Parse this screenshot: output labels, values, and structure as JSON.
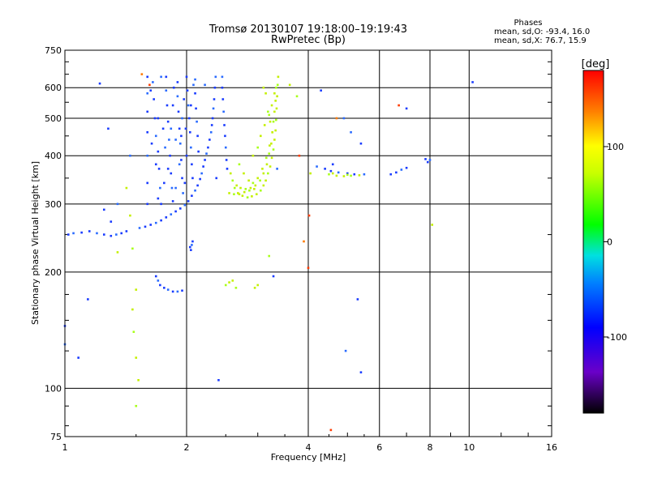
{
  "chart_data": {
    "type": "scatter",
    "title": "Tromsø 20130107 19:18:00–19:19:43",
    "subtitle": "RwPretec (Bp)",
    "xlabel": "Frequency [MHz]",
    "ylabel": "Stationary phase Virtual Height [km]",
    "x_scale": "log",
    "y_scale": "log",
    "xlim": [
      1,
      16
    ],
    "ylim": [
      75,
      750
    ],
    "x_ticks": [
      1,
      2,
      4,
      6,
      8,
      10,
      16
    ],
    "x_tick_labels": [
      "1",
      "2",
      "4",
      "6",
      "8",
      "10",
      "16"
    ],
    "y_ticks": [
      75,
      100,
      200,
      300,
      400,
      500,
      600,
      750
    ],
    "y_tick_labels": [
      "75",
      "100",
      "200",
      "300",
      "400",
      "500",
      "600",
      "750"
    ],
    "grid": true,
    "stats": {
      "heading": "Phases",
      "o_line": "mean, sd,O: -93.4, 16.0",
      "x_line": "mean, sd,X:  76.7, 15.9"
    },
    "colorbar": {
      "label": "[deg]",
      "range": [
        -180,
        180
      ],
      "ticks": [
        100,
        0,
        -100
      ],
      "tick_labels": [
        "100",
        "0",
        "-100"
      ]
    },
    "series": [
      {
        "points": [
          [
            1.53,
            260
          ],
          [
            1.58,
            262
          ],
          [
            1.63,
            265
          ],
          [
            1.68,
            268
          ],
          [
            1.73,
            272
          ],
          [
            1.78,
            277
          ],
          [
            1.83,
            282
          ],
          [
            1.88,
            287
          ],
          [
            1.93,
            292
          ],
          [
            1.98,
            298
          ],
          [
            2.02,
            305
          ],
          [
            2.06,
            315
          ],
          [
            2.1,
            325
          ],
          [
            2.13,
            335
          ],
          [
            2.16,
            348
          ],
          [
            2.18,
            360
          ],
          [
            2.2,
            375
          ],
          [
            2.22,
            390
          ],
          [
            2.24,
            405
          ],
          [
            2.26,
            420
          ],
          [
            2.28,
            440
          ],
          [
            2.3,
            460
          ],
          [
            2.31,
            480
          ],
          [
            2.32,
            500
          ],
          [
            2.33,
            530
          ],
          [
            2.34,
            560
          ],
          [
            2.35,
            600
          ],
          [
            2.36,
            640
          ],
          [
            1.42,
            255
          ],
          [
            1.38,
            252
          ],
          [
            1.34,
            250
          ],
          [
            1.3,
            248
          ],
          [
            1.25,
            250
          ],
          [
            1.2,
            252
          ],
          [
            1.15,
            255
          ],
          [
            1.1,
            253
          ],
          [
            1.05,
            252
          ],
          [
            1.02,
            250
          ],
          [
            1.6,
            640
          ],
          [
            1.6,
            580
          ],
          [
            1.6,
            520
          ],
          [
            1.6,
            460
          ],
          [
            1.6,
            400
          ],
          [
            1.6,
            340
          ],
          [
            1.6,
            300
          ],
          [
            1.65,
            620
          ],
          [
            1.66,
            560
          ],
          [
            1.67,
            500
          ],
          [
            1.68,
            450
          ],
          [
            1.7,
            410
          ],
          [
            1.71,
            370
          ],
          [
            1.72,
            330
          ],
          [
            1.73,
            300
          ],
          [
            1.78,
            640
          ],
          [
            1.78,
            590
          ],
          [
            1.79,
            540
          ],
          [
            1.8,
            490
          ],
          [
            1.81,
            440
          ],
          [
            1.82,
            400
          ],
          [
            1.83,
            360
          ],
          [
            1.84,
            330
          ],
          [
            1.85,
            305
          ],
          [
            1.9,
            620
          ],
          [
            1.9,
            570
          ],
          [
            1.91,
            520
          ],
          [
            1.92,
            470
          ],
          [
            1.93,
            430
          ],
          [
            1.94,
            390
          ],
          [
            1.95,
            350
          ],
          [
            1.96,
            320
          ],
          [
            2.0,
            640
          ],
          [
            2.01,
            590
          ],
          [
            2.02,
            540
          ],
          [
            2.03,
            500
          ],
          [
            2.04,
            460
          ],
          [
            2.05,
            420
          ],
          [
            2.06,
            380
          ],
          [
            2.07,
            350
          ],
          [
            2.1,
            630
          ],
          [
            2.1,
            580
          ],
          [
            2.11,
            530
          ],
          [
            2.12,
            490
          ],
          [
            2.13,
            450
          ],
          [
            2.14,
            410
          ],
          [
            1.73,
            640
          ],
          [
            1.86,
            600
          ],
          [
            1.97,
            560
          ],
          [
            2.08,
            610
          ],
          [
            1.63,
            590
          ],
          [
            1.75,
            470
          ],
          [
            1.88,
            440
          ],
          [
            1.99,
            470
          ],
          [
            1.85,
            540
          ],
          [
            1.95,
            500
          ],
          [
            2.05,
            540
          ],
          [
            1.7,
            500
          ],
          [
            1.83,
            470
          ],
          [
            1.94,
            450
          ],
          [
            1.64,
            430
          ],
          [
            1.77,
            420
          ],
          [
            1.68,
            380
          ],
          [
            1.8,
            370
          ],
          [
            1.92,
            380
          ],
          [
            2.0,
            400
          ],
          [
            1.76,
            340
          ],
          [
            1.88,
            330
          ],
          [
            1.98,
            340
          ],
          [
            1.7,
            310
          ],
          [
            1.8,
            180
          ],
          [
            1.76,
            182
          ],
          [
            1.72,
            185
          ],
          [
            1.7,
            190
          ],
          [
            1.68,
            195
          ],
          [
            1.85,
            178
          ],
          [
            1.9,
            178
          ],
          [
            1.95,
            179
          ],
          [
            2.05,
            228
          ],
          [
            2.06,
            235
          ],
          [
            2.07,
            240
          ],
          [
            2.04,
            232
          ],
          [
            2.45,
            640
          ],
          [
            2.45,
            600
          ],
          [
            2.46,
            560
          ],
          [
            2.47,
            520
          ],
          [
            2.48,
            480
          ],
          [
            2.49,
            450
          ],
          [
            2.5,
            420
          ],
          [
            2.51,
            390
          ],
          [
            2.52,
            370
          ],
          [
            4.2,
            375
          ],
          [
            4.4,
            370
          ],
          [
            4.55,
            365
          ],
          [
            4.75,
            362
          ],
          [
            5.0,
            360
          ],
          [
            5.2,
            358
          ],
          [
            5.5,
            358
          ],
          [
            6.4,
            358
          ],
          [
            6.6,
            362
          ],
          [
            6.8,
            368
          ],
          [
            7.0,
            372
          ],
          [
            7.9,
            385
          ],
          [
            8.0,
            390
          ],
          [
            7.8,
            392
          ],
          [
            1.0,
            145
          ],
          [
            1.0,
            130
          ],
          [
            1.22,
            615
          ],
          [
            1.28,
            470
          ],
          [
            1.35,
            300
          ],
          [
            1.25,
            290
          ],
          [
            1.3,
            270
          ],
          [
            1.45,
            400
          ],
          [
            1.08,
            120
          ],
          [
            1.14,
            170
          ],
          [
            2.22,
            610
          ],
          [
            2.37,
            350
          ],
          [
            2.4,
            105
          ],
          [
            3.35,
            370
          ],
          [
            3.28,
            195
          ],
          [
            4.3,
            590
          ],
          [
            4.9,
            500
          ],
          [
            5.3,
            170
          ],
          [
            5.4,
            110
          ],
          [
            4.95,
            125
          ],
          [
            7.0,
            530
          ],
          [
            10.2,
            620
          ],
          [
            5.1,
            460
          ],
          [
            5.4,
            430
          ],
          [
            4.6,
            380
          ]
        ]
      },
      {
        "points": [
          [
            2.63,
            330
          ],
          [
            2.68,
            320
          ],
          [
            2.75,
            315
          ],
          [
            2.83,
            312
          ],
          [
            2.9,
            314
          ],
          [
            2.98,
            318
          ],
          [
            3.05,
            325
          ],
          [
            3.1,
            335
          ],
          [
            3.14,
            345
          ],
          [
            3.18,
            360
          ],
          [
            3.22,
            375
          ],
          [
            3.25,
            395
          ],
          [
            3.28,
            415
          ],
          [
            3.3,
            440
          ],
          [
            3.32,
            465
          ],
          [
            3.33,
            495
          ],
          [
            3.34,
            530
          ],
          [
            3.35,
            570
          ],
          [
            3.36,
            610
          ],
          [
            3.37,
            640
          ],
          [
            2.57,
            360
          ],
          [
            2.6,
            345
          ],
          [
            2.66,
            335
          ],
          [
            2.72,
            330
          ],
          [
            2.8,
            328
          ],
          [
            2.88,
            330
          ],
          [
            2.96,
            335
          ],
          [
            3.04,
            345
          ],
          [
            3.1,
            360
          ],
          [
            3.16,
            380
          ],
          [
            3.2,
            405
          ],
          [
            3.24,
            430
          ],
          [
            3.26,
            460
          ],
          [
            3.28,
            490
          ],
          [
            3.3,
            520
          ],
          [
            3.32,
            555
          ],
          [
            2.7,
            380
          ],
          [
            2.77,
            360
          ],
          [
            2.85,
            345
          ],
          [
            2.92,
            340
          ],
          [
            3.0,
            350
          ],
          [
            3.08,
            370
          ],
          [
            3.15,
            395
          ],
          [
            3.21,
            425
          ],
          [
            2.55,
            320
          ],
          [
            2.62,
            318
          ],
          [
            2.7,
            318
          ],
          [
            2.78,
            322
          ],
          [
            2.86,
            325
          ],
          [
            2.94,
            328
          ],
          [
            2.92,
            400
          ],
          [
            3.0,
            420
          ],
          [
            3.05,
            450
          ],
          [
            3.12,
            480
          ],
          [
            3.2,
            510
          ],
          [
            3.25,
            540
          ],
          [
            3.3,
            580
          ],
          [
            3.33,
            600
          ],
          [
            3.1,
            600
          ],
          [
            3.14,
            580
          ],
          [
            3.18,
            520
          ],
          [
            3.22,
            490
          ],
          [
            3.26,
            460
          ],
          [
            2.5,
            185
          ],
          [
            2.55,
            188
          ],
          [
            2.6,
            190
          ],
          [
            2.65,
            182
          ],
          [
            2.95,
            182
          ],
          [
            3.0,
            185
          ],
          [
            4.5,
            358
          ],
          [
            4.7,
            355
          ],
          [
            4.9,
            354
          ],
          [
            5.1,
            355
          ],
          [
            5.35,
            356
          ],
          [
            4.6,
            360
          ],
          [
            5.0,
            357
          ],
          [
            1.42,
            330
          ],
          [
            1.45,
            280
          ],
          [
            1.47,
            230
          ],
          [
            1.5,
            180
          ],
          [
            1.47,
            160
          ],
          [
            1.48,
            140
          ],
          [
            1.5,
            120
          ],
          [
            1.52,
            105
          ],
          [
            1.5,
            90
          ],
          [
            4.05,
            360
          ],
          [
            3.6,
            610
          ],
          [
            3.75,
            570
          ],
          [
            8.1,
            265
          ],
          [
            1.35,
            225
          ],
          [
            3.2,
            220
          ]
        ]
      },
      {
        "points": [
          [
            1.55,
            650
          ],
          [
            3.8,
            400
          ],
          [
            4.02,
            280
          ],
          [
            3.9,
            240
          ],
          [
            4.0,
            205
          ],
          [
            4.55,
            78
          ],
          [
            4.7,
            500
          ],
          [
            6.7,
            540
          ],
          [
            1.62,
            610
          ]
        ]
      }
    ]
  }
}
